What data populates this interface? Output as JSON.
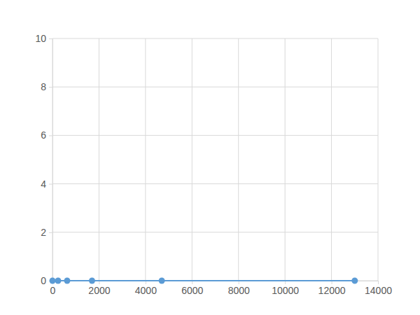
{
  "chart_data": {
    "type": "line",
    "marker": "circle",
    "color": "#5b9bd5",
    "x": [
      0,
      240,
      630,
      1700,
      4700,
      13000
    ],
    "values": [
      0,
      0,
      0,
      0,
      0,
      0
    ],
    "xlim": [
      0,
      14000
    ],
    "xticks": [
      0,
      2000,
      4000,
      6000,
      8000,
      10000,
      12000,
      14000
    ],
    "ylim": [
      0,
      10
    ],
    "yticks": [
      0,
      2,
      4,
      6,
      8,
      10
    ],
    "grid": true
  }
}
